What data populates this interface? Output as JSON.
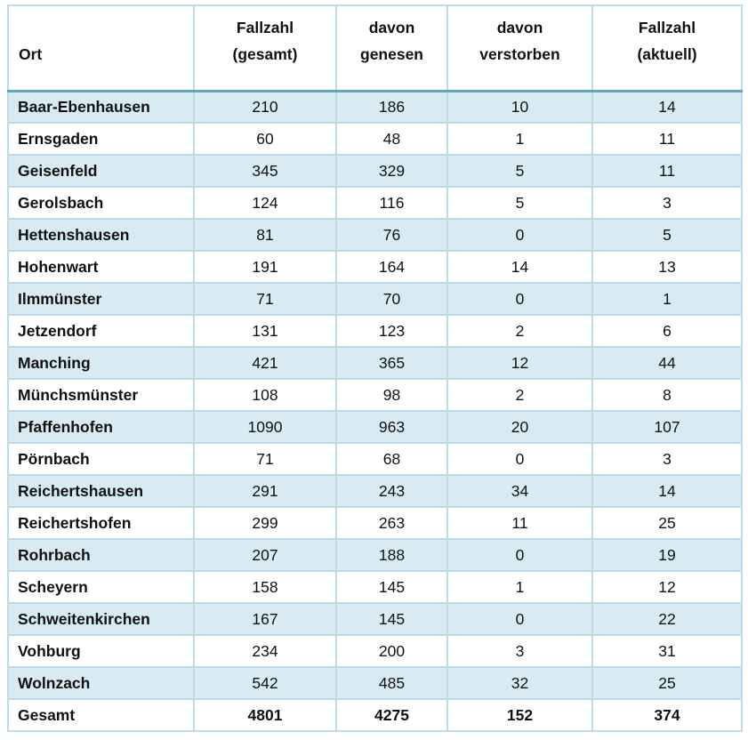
{
  "table": {
    "columns": [
      {
        "line1": "Ort",
        "line2": ""
      },
      {
        "line1": "Fallzahl",
        "line2": "(gesamt)"
      },
      {
        "line1": "davon",
        "line2": "genesen"
      },
      {
        "line1": "davon",
        "line2": "verstorben"
      },
      {
        "line1": "Fallzahl",
        "line2": "(aktuell)"
      }
    ],
    "rows": [
      {
        "ort": "Baar-Ebenhausen",
        "gesamt": "210",
        "genesen": "186",
        "verstorben": "10",
        "aktuell": "14"
      },
      {
        "ort": "Ernsgaden",
        "gesamt": "60",
        "genesen": "48",
        "verstorben": "1",
        "aktuell": "11"
      },
      {
        "ort": "Geisenfeld",
        "gesamt": "345",
        "genesen": "329",
        "verstorben": "5",
        "aktuell": "11"
      },
      {
        "ort": "Gerolsbach",
        "gesamt": "124",
        "genesen": "116",
        "verstorben": "5",
        "aktuell": "3"
      },
      {
        "ort": "Hettenshausen",
        "gesamt": "81",
        "genesen": "76",
        "verstorben": "0",
        "aktuell": "5"
      },
      {
        "ort": "Hohenwart",
        "gesamt": "191",
        "genesen": "164",
        "verstorben": "14",
        "aktuell": "13"
      },
      {
        "ort": "Ilmmünster",
        "gesamt": "71",
        "genesen": "70",
        "verstorben": "0",
        "aktuell": "1"
      },
      {
        "ort": "Jetzendorf",
        "gesamt": "131",
        "genesen": "123",
        "verstorben": "2",
        "aktuell": "6"
      },
      {
        "ort": "Manching",
        "gesamt": "421",
        "genesen": "365",
        "verstorben": "12",
        "aktuell": "44"
      },
      {
        "ort": "Münchsmünster",
        "gesamt": "108",
        "genesen": "98",
        "verstorben": "2",
        "aktuell": "8"
      },
      {
        "ort": "Pfaffenhofen",
        "gesamt": "1090",
        "genesen": "963",
        "verstorben": "20",
        "aktuell": "107"
      },
      {
        "ort": "Pörnbach",
        "gesamt": "71",
        "genesen": "68",
        "verstorben": "0",
        "aktuell": "3"
      },
      {
        "ort": "Reichertshausen",
        "gesamt": "291",
        "genesen": "243",
        "verstorben": "34",
        "aktuell": "14"
      },
      {
        "ort": "Reichertshofen",
        "gesamt": "299",
        "genesen": "263",
        "verstorben": "11",
        "aktuell": "25"
      },
      {
        "ort": "Rohrbach",
        "gesamt": "207",
        "genesen": "188",
        "verstorben": "0",
        "aktuell": "19"
      },
      {
        "ort": "Scheyern",
        "gesamt": "158",
        "genesen": "145",
        "verstorben": "1",
        "aktuell": "12"
      },
      {
        "ort": "Schweitenkirchen",
        "gesamt": "167",
        "genesen": "145",
        "verstorben": "0",
        "aktuell": "22"
      },
      {
        "ort": "Vohburg",
        "gesamt": "234",
        "genesen": "200",
        "verstorben": "3",
        "aktuell": "31"
      },
      {
        "ort": "Wolnzach",
        "gesamt": "542",
        "genesen": "485",
        "verstorben": "32",
        "aktuell": "25"
      }
    ],
    "total_row": {
      "ort": "Gesamt",
      "gesamt": "4801",
      "genesen": "4275",
      "verstorben": "152",
      "aktuell": "374"
    }
  },
  "colors": {
    "row_shade": "#d8ebf3",
    "cell_border": "#bcdce9",
    "header_rule": "#68a4bd",
    "text": "#111111"
  }
}
